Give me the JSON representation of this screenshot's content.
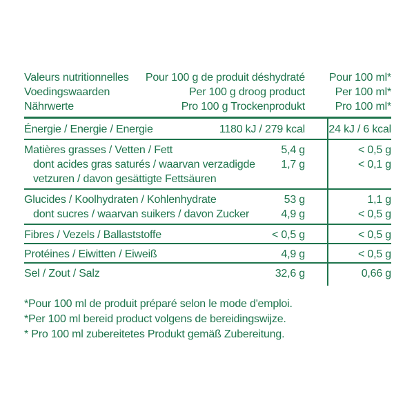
{
  "colors": {
    "ink_green": "#1e744c",
    "background": "#ffffff"
  },
  "table": {
    "header": {
      "col1": [
        "Valeurs nutritionnelles",
        "Voedingswaarden",
        "Nährwerte"
      ],
      "col2": [
        "Pour 100 g de produit déshydraté",
        "Per 100 g droog product",
        "Pro 100 g Trockenprodukt"
      ],
      "col3": [
        "Pour 100 ml*",
        "Per 100 ml*",
        "Pro 100 ml*"
      ]
    },
    "rows": [
      {
        "label": "Énergie / Energie / Energie",
        "per100g": "1180 kJ / 279 kcal",
        "per100ml": "24 kJ / 6 kcal"
      },
      {
        "label": "Matières grasses / Vetten / Fett",
        "per100g": "5,4 g",
        "per100ml": "< 0,5 g",
        "sub": {
          "label": "dont acides gras saturés / waarvan verzadigde vetzuren / davon gesättigte Fettsäuren",
          "per100g": "1,7 g",
          "per100ml": "< 0,1 g"
        }
      },
      {
        "label": "Glucides / Koolhydraten / Kohlenhydrate",
        "per100g": "53 g",
        "per100ml": "1,1 g",
        "sub": {
          "label": "dont sucres / waarvan suikers / davon Zucker",
          "per100g": "4,9 g",
          "per100ml": "< 0,5 g"
        }
      },
      {
        "label": "Fibres / Vezels / Ballaststoffe",
        "per100g": "< 0,5 g",
        "per100ml": "< 0,5 g"
      },
      {
        "label": "Protéines / Eiwitten / Eiweiß",
        "per100g": "4,9 g",
        "per100ml": "< 0,5 g"
      },
      {
        "label": "Sel / Zout / Salz",
        "per100g": "32,6 g",
        "per100ml": "0,66 g"
      }
    ]
  },
  "footnotes": [
    "*Pour 100 ml de produit préparé selon le mode d'emploi.",
    "*Per 100 ml bereid product volgens de bereidingswijze.",
    "* Pro 100 ml zubereitetes Produkt gemäß Zubereitung."
  ]
}
